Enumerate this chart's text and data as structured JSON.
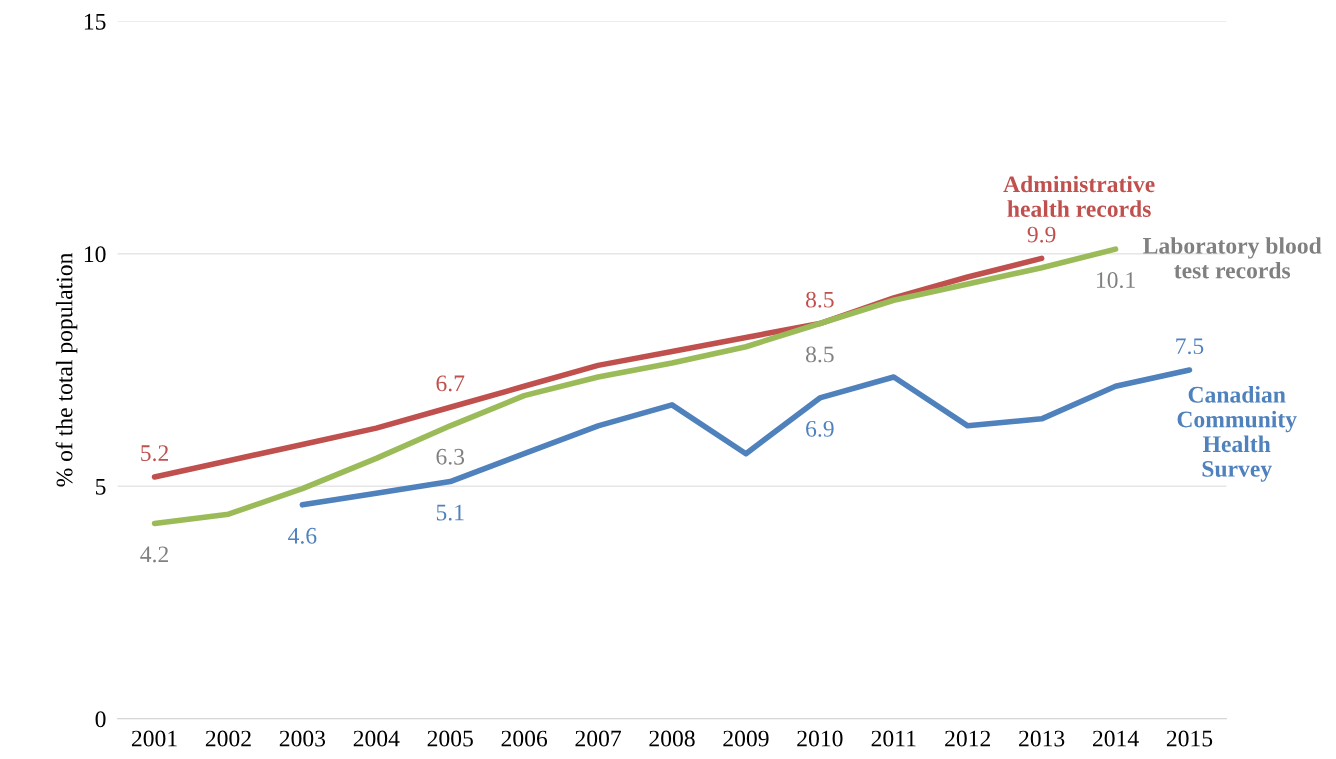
{
  "chart_data": {
    "type": "line",
    "ylabel": "% of the total population",
    "categories": [
      "2001",
      "2002",
      "2003",
      "2004",
      "2005",
      "2006",
      "2007",
      "2008",
      "2009",
      "2010",
      "2011",
      "2012",
      "2013",
      "2014",
      "2015"
    ],
    "series": [
      {
        "name": "Administrative health records",
        "color": "#c0504d",
        "values": [
          5.2,
          5.55,
          5.9,
          6.25,
          6.7,
          7.15,
          7.6,
          7.9,
          8.2,
          8.5,
          9.05,
          9.5,
          9.9,
          null,
          null
        ],
        "value_labels": [
          "5.2",
          null,
          null,
          null,
          "6.7",
          null,
          null,
          null,
          null,
          "8.5",
          null,
          null,
          "9.9",
          null,
          null
        ]
      },
      {
        "name": "Laboratory blood test records",
        "color": "#9bbb59",
        "values": [
          4.2,
          4.4,
          4.95,
          5.6,
          6.3,
          6.95,
          7.35,
          7.65,
          8.0,
          8.5,
          9.0,
          9.35,
          9.7,
          10.1,
          null
        ],
        "value_labels": [
          "4.2",
          null,
          null,
          null,
          "6.3",
          null,
          null,
          null,
          null,
          "8.5",
          null,
          null,
          null,
          "10.1",
          null
        ]
      },
      {
        "name": "Canadian Community Health Survey",
        "color": "#4f81bd",
        "values": [
          null,
          null,
          4.6,
          4.85,
          5.1,
          5.7,
          6.3,
          6.75,
          5.7,
          6.9,
          7.35,
          6.3,
          6.45,
          7.15,
          7.5
        ],
        "value_labels": [
          null,
          null,
          "4.6",
          null,
          "5.1",
          null,
          null,
          null,
          null,
          "6.9",
          null,
          null,
          null,
          null,
          "7.5"
        ]
      }
    ],
    "ylim": [
      0,
      15
    ],
    "yticks": [
      0,
      5,
      10,
      15
    ],
    "grid": "y",
    "marker": "none",
    "line_style": "solid"
  }
}
